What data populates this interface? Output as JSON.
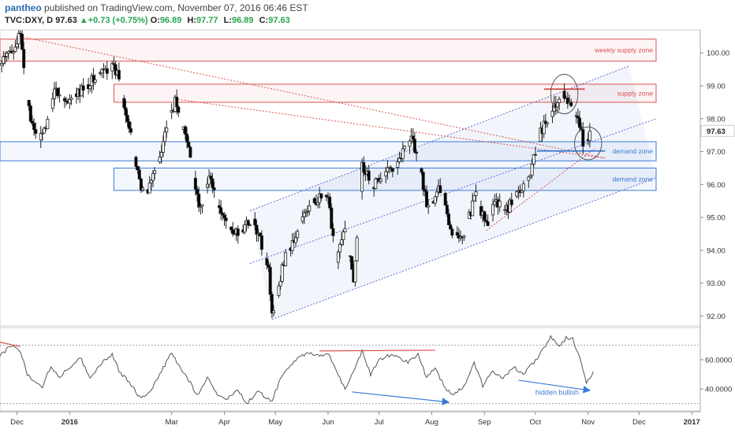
{
  "header": {
    "author": "pantheo",
    "published_text": "published on TradingView.com, November 07, 2016 06:46 EST",
    "symbol": "TVC:DXY, D",
    "last": "97.63",
    "change": "+0.73 (+0.75%)",
    "o_label": "O:",
    "o_value": "96.89",
    "h_label": "H:",
    "h_value": "97.77",
    "l_label": "L:",
    "l_value": "96.89",
    "c_label": "C:",
    "c_value": "97.63"
  },
  "colors": {
    "bull": "#ffffff",
    "bear": "#000000",
    "supply": "#d9534f",
    "demand": "#3a7bd5",
    "channel": "#5a6ed8",
    "price_badge": "#ffffff",
    "oscillator": "#555555"
  },
  "chart_data": [
    {
      "type": "candlestick",
      "title": "",
      "x_tick_labels": [
        "Dec",
        "2016",
        "Mar",
        "Apr",
        "May",
        "Jun",
        "Jul",
        "Aug",
        "Sep",
        "Oct",
        "Nov",
        "Dec",
        "2017"
      ],
      "x_tick_days": [
        0,
        31,
        91,
        122,
        152,
        183,
        213,
        244,
        275,
        305,
        336,
        366,
        397
      ],
      "y_ticks": [
        92.0,
        93.0,
        94.0,
        95.0,
        96.0,
        97.0,
        98.0,
        99.0,
        100.0
      ],
      "y_tick_labels": [
        "92.00",
        "93.00",
        "94.00",
        "95.00",
        "96.00",
        "97.00",
        "98.00",
        "99.00",
        "100.00"
      ],
      "ylim": [
        91.7,
        100.7
      ],
      "xlim_days": [
        -10,
        402
      ],
      "current_price": 97.63,
      "current_price_label": "97.63",
      "keypoints": [
        {
          "day": -10,
          "price": 99.6
        },
        {
          "day": 2,
          "price": 100.5
        },
        {
          "day": 8,
          "price": 97.8
        },
        {
          "day": 15,
          "price": 97.4
        },
        {
          "day": 22,
          "price": 98.9
        },
        {
          "day": 30,
          "price": 98.4
        },
        {
          "day": 40,
          "price": 99.0
        },
        {
          "day": 55,
          "price": 99.6
        },
        {
          "day": 60,
          "price": 99.3
        },
        {
          "day": 63,
          "price": 98.5
        },
        {
          "day": 70,
          "price": 96.6
        },
        {
          "day": 75,
          "price": 95.6
        },
        {
          "day": 82,
          "price": 96.5
        },
        {
          "day": 88,
          "price": 97.8
        },
        {
          "day": 93,
          "price": 98.5
        },
        {
          "day": 100,
          "price": 97.3
        },
        {
          "day": 108,
          "price": 95.2
        },
        {
          "day": 113,
          "price": 96.4
        },
        {
          "day": 118,
          "price": 95.2
        },
        {
          "day": 125,
          "price": 94.8
        },
        {
          "day": 130,
          "price": 94.4
        },
        {
          "day": 138,
          "price": 95.0
        },
        {
          "day": 145,
          "price": 94.0
        },
        {
          "day": 148,
          "price": 93.5
        },
        {
          "day": 150,
          "price": 92.0
        },
        {
          "day": 157,
          "price": 93.7
        },
        {
          "day": 163,
          "price": 94.3
        },
        {
          "day": 170,
          "price": 95.2
        },
        {
          "day": 177,
          "price": 95.6
        },
        {
          "day": 183,
          "price": 95.5
        },
        {
          "day": 188,
          "price": 93.8
        },
        {
          "day": 193,
          "price": 94.6
        },
        {
          "day": 198,
          "price": 93.1
        },
        {
          "day": 203,
          "price": 96.6
        },
        {
          "day": 210,
          "price": 96.0
        },
        {
          "day": 218,
          "price": 96.4
        },
        {
          "day": 225,
          "price": 96.8
        },
        {
          "day": 232,
          "price": 97.5
        },
        {
          "day": 237,
          "price": 96.5
        },
        {
          "day": 242,
          "price": 95.2
        },
        {
          "day": 250,
          "price": 96.0
        },
        {
          "day": 255,
          "price": 94.6
        },
        {
          "day": 262,
          "price": 94.4
        },
        {
          "day": 270,
          "price": 95.7
        },
        {
          "day": 276,
          "price": 94.7
        },
        {
          "day": 282,
          "price": 95.5
        },
        {
          "day": 289,
          "price": 95.3
        },
        {
          "day": 295,
          "price": 95.8
        },
        {
          "day": 302,
          "price": 96.2
        },
        {
          "day": 306,
          "price": 97.3
        },
        {
          "day": 310,
          "price": 97.8
        },
        {
          "day": 316,
          "price": 98.3
        },
        {
          "day": 321,
          "price": 98.9
        },
        {
          "day": 326,
          "price": 98.3
        },
        {
          "day": 330,
          "price": 98.1
        },
        {
          "day": 334,
          "price": 97.0
        },
        {
          "day": 337,
          "price": 97.63
        }
      ],
      "zones": [
        {
          "label": "weekly supply zone",
          "kind": "supply",
          "from_day": -10,
          "to_day": 376,
          "low": 99.75,
          "high": 100.42
        },
        {
          "label": "supply zone",
          "kind": "supply",
          "from_day": 57,
          "to_day": 376,
          "low": 98.5,
          "high": 99.05
        },
        {
          "label": "demand zone",
          "kind": "demand",
          "from_day": -10,
          "to_day": 376,
          "low": 96.72,
          "high": 97.3
        },
        {
          "label": "demand zone",
          "kind": "demand",
          "from_day": 57,
          "to_day": 376,
          "low": 95.82,
          "high": 96.5
        }
      ],
      "lines": [
        {
          "style": "dotted",
          "color": "#5a6ed8",
          "x1_day": 137,
          "y1": 95.2,
          "x2_day": 360,
          "y2": 99.6
        },
        {
          "style": "dotted",
          "color": "#5a6ed8",
          "x1_day": 150,
          "y1": 91.9,
          "x2_day": 376,
          "y2": 96.2
        },
        {
          "style": "dotted",
          "color": "#5a6ed8",
          "x1_day": 137,
          "y1": 93.6,
          "x2_day": 376,
          "y2": 98.0
        },
        {
          "style": "dotted",
          "color": "#d9534f",
          "x1_day": 2,
          "y1": 100.5,
          "x2_day": 346,
          "y2": 96.8
        },
        {
          "style": "dotted",
          "color": "#d9534f",
          "x1_day": 93,
          "y1": 98.6,
          "x2_day": 346,
          "y2": 96.8
        },
        {
          "style": "dotted",
          "color": "#d9534f",
          "x1_day": 276,
          "y1": 94.6,
          "x2_day": 340,
          "y2": 97.1
        },
        {
          "style": "solid",
          "color": "#d9534f",
          "x1_day": 310,
          "y1": 98.9,
          "x2_day": 334,
          "y2": 98.9
        },
        {
          "style": "solid",
          "color": "#3a7bd5",
          "x1_day": 306,
          "y1": 97.02,
          "x2_day": 346,
          "y2": 97.02
        }
      ],
      "circles": [
        {
          "day": 322,
          "price": 98.75,
          "rx_days": 8,
          "ry_price": 0.6
        },
        {
          "day": 336,
          "price": 97.25,
          "rx_days": 8,
          "ry_price": 0.5
        }
      ],
      "channel_area": [
        {
          "day": 137,
          "price": 95.2
        },
        {
          "day": 360,
          "price": 99.6
        },
        {
          "day": 376,
          "price": 96.2
        },
        {
          "day": 150,
          "price": 91.9
        }
      ]
    },
    {
      "type": "line",
      "title": "",
      "y_tick_labels": [
        "60.0000",
        "40.0000"
      ],
      "y_ticks": [
        60,
        40
      ],
      "ylim": [
        25,
        82
      ],
      "guide_levels": [
        70,
        30
      ],
      "keypoints": [
        {
          "day": -10,
          "value": 62
        },
        {
          "day": -4,
          "value": 70
        },
        {
          "day": 2,
          "value": 66
        },
        {
          "day": 6,
          "value": 50
        },
        {
          "day": 10,
          "value": 46
        },
        {
          "day": 15,
          "value": 42
        },
        {
          "day": 20,
          "value": 56
        },
        {
          "day": 25,
          "value": 48
        },
        {
          "day": 31,
          "value": 55
        },
        {
          "day": 37,
          "value": 62
        },
        {
          "day": 43,
          "value": 48
        },
        {
          "day": 50,
          "value": 58
        },
        {
          "day": 56,
          "value": 64
        },
        {
          "day": 60,
          "value": 52
        },
        {
          "day": 66,
          "value": 45
        },
        {
          "day": 73,
          "value": 33
        },
        {
          "day": 79,
          "value": 40
        },
        {
          "day": 85,
          "value": 52
        },
        {
          "day": 91,
          "value": 65
        },
        {
          "day": 95,
          "value": 56
        },
        {
          "day": 100,
          "value": 48
        },
        {
          "day": 106,
          "value": 36
        },
        {
          "day": 112,
          "value": 48
        },
        {
          "day": 118,
          "value": 36
        },
        {
          "day": 124,
          "value": 33
        },
        {
          "day": 130,
          "value": 40
        },
        {
          "day": 135,
          "value": 30
        },
        {
          "day": 142,
          "value": 38
        },
        {
          "day": 150,
          "value": 32
        },
        {
          "day": 155,
          "value": 47
        },
        {
          "day": 160,
          "value": 55
        },
        {
          "day": 166,
          "value": 63
        },
        {
          "day": 172,
          "value": 64
        },
        {
          "day": 178,
          "value": 62
        },
        {
          "day": 183,
          "value": 65
        },
        {
          "day": 188,
          "value": 52
        },
        {
          "day": 193,
          "value": 40
        },
        {
          "day": 198,
          "value": 52
        },
        {
          "day": 203,
          "value": 66
        },
        {
          "day": 208,
          "value": 50
        },
        {
          "day": 213,
          "value": 60
        },
        {
          "day": 218,
          "value": 63
        },
        {
          "day": 224,
          "value": 62
        },
        {
          "day": 230,
          "value": 58
        },
        {
          "day": 236,
          "value": 64
        },
        {
          "day": 241,
          "value": 48
        },
        {
          "day": 246,
          "value": 55
        },
        {
          "day": 252,
          "value": 40
        },
        {
          "day": 257,
          "value": 36
        },
        {
          "day": 263,
          "value": 42
        },
        {
          "day": 269,
          "value": 58
        },
        {
          "day": 274,
          "value": 42
        },
        {
          "day": 280,
          "value": 52
        },
        {
          "day": 286,
          "value": 48
        },
        {
          "day": 292,
          "value": 55
        },
        {
          "day": 298,
          "value": 50
        },
        {
          "day": 304,
          "value": 58
        },
        {
          "day": 309,
          "value": 66
        },
        {
          "day": 314,
          "value": 76
        },
        {
          "day": 319,
          "value": 68
        },
        {
          "day": 323,
          "value": 75
        },
        {
          "day": 327,
          "value": 74
        },
        {
          "day": 331,
          "value": 62
        },
        {
          "day": 335,
          "value": 44
        },
        {
          "day": 339,
          "value": 52
        }
      ],
      "lines": [
        {
          "color": "#d9534f",
          "x1_day": -10,
          "y1": 72,
          "x2_day": 2,
          "y2": 69
        },
        {
          "color": "#d9534f",
          "x1_day": 178,
          "y1": 66,
          "x2_day": 246,
          "y2": 66.5
        },
        {
          "color": "#3a7bd5",
          "x1_day": 197,
          "y1": 38,
          "x2_day": 254,
          "y2": 31,
          "arrow": true
        },
        {
          "color": "#3a7bd5",
          "x1_day": 295,
          "y1": 46,
          "x2_day": 337,
          "y2": 39,
          "arrow": true
        }
      ],
      "annotations": [
        {
          "text": "hidden bullish",
          "day": 305,
          "value": 36
        }
      ]
    }
  ]
}
